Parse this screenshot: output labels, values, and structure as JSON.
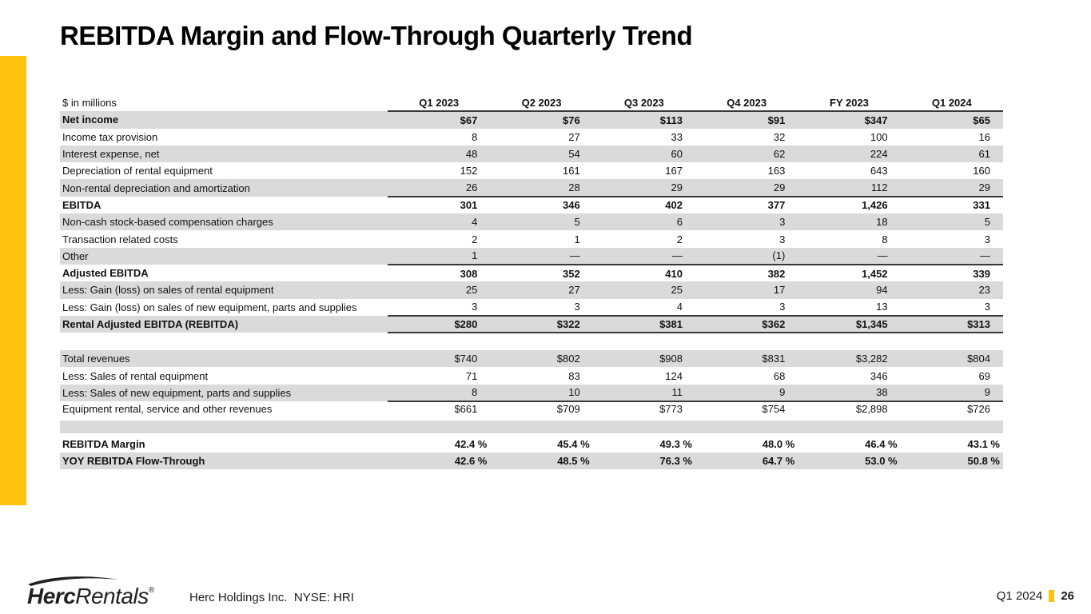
{
  "slide": {
    "title": "REBITDA Margin and Flow-Through Quarterly Trend",
    "accent_color": "#FFC20E"
  },
  "table": {
    "unit_label": "$ in millions",
    "columns": [
      "Q1 2023",
      "Q2 2023",
      "Q3 2023",
      "Q4 2023",
      "FY 2023",
      "Q1 2024"
    ],
    "rows": [
      {
        "label": "Net income",
        "values": [
          "$67",
          "$76",
          "$113",
          "$91",
          "$347",
          "$65"
        ],
        "bold": true,
        "shaded": true
      },
      {
        "label": "Income tax provision",
        "values": [
          "8",
          "27",
          "33",
          "32",
          "100",
          "16"
        ]
      },
      {
        "label": "Interest expense, net",
        "values": [
          "48",
          "54",
          "60",
          "62",
          "224",
          "61"
        ],
        "shaded": true
      },
      {
        "label": "Depreciation of rental equipment",
        "values": [
          "152",
          "161",
          "167",
          "163",
          "643",
          "160"
        ]
      },
      {
        "label": "Non-rental depreciation and amortization",
        "values": [
          "26",
          "28",
          "29",
          "29",
          "112",
          "29"
        ],
        "shaded": true,
        "rule_below": true
      },
      {
        "label": "EBITDA",
        "values": [
          "301",
          "346",
          "402",
          "377",
          "1,426",
          "331"
        ],
        "bold": true
      },
      {
        "label": "Non-cash stock-based compensation charges",
        "values": [
          "4",
          "5",
          "6",
          "3",
          "18",
          "5"
        ],
        "shaded": true
      },
      {
        "label": "Transaction related costs",
        "values": [
          "2",
          "1",
          "2",
          "3",
          "8",
          "3"
        ]
      },
      {
        "label": "Other",
        "values": [
          "1",
          "—",
          "—",
          "(1)",
          "—",
          "—"
        ],
        "shaded": true,
        "rule_below": true
      },
      {
        "label": "Adjusted EBITDA",
        "values": [
          "308",
          "352",
          "410",
          "382",
          "1,452",
          "339"
        ],
        "bold": true
      },
      {
        "label": "Less: Gain (loss) on sales of rental equipment",
        "values": [
          "25",
          "27",
          "25",
          "17",
          "94",
          "23"
        ],
        "shaded": true
      },
      {
        "label": "Less: Gain (loss) on sales of new equipment, parts and supplies",
        "values": [
          "3",
          "3",
          "4",
          "3",
          "13",
          "3"
        ],
        "rule_below": true
      },
      {
        "label": "Rental Adjusted EBITDA (REBITDA)",
        "values": [
          "$280",
          "$322",
          "$381",
          "$362",
          "$1,345",
          "$313"
        ],
        "bold": true,
        "shaded": true,
        "rule_below": true
      },
      {
        "spacer": "white"
      },
      {
        "label": "Total revenues",
        "values": [
          "$740",
          "$802",
          "$908",
          "$831",
          "$3,282",
          "$804"
        ],
        "shaded": true
      },
      {
        "label": "Less: Sales of rental equipment",
        "values": [
          "71",
          "83",
          "124",
          "68",
          "346",
          "69"
        ]
      },
      {
        "label": "Less: Sales of new equipment, parts and supplies",
        "values": [
          "8",
          "10",
          "11",
          "9",
          "38",
          "9"
        ],
        "shaded": true,
        "rule_below": true
      },
      {
        "label": "Equipment rental, service and other revenues",
        "values": [
          "$661",
          "$709",
          "$773",
          "$754",
          "$2,898",
          "$726"
        ],
        "rule_below": true
      },
      {
        "spacer": "gray"
      },
      {
        "label": "REBITDA Margin",
        "values": [
          "42.4 %",
          "45.4 %",
          "49.3 %",
          "48.0 %",
          "46.4 %",
          "43.1 %"
        ],
        "bold": true,
        "percent": true
      },
      {
        "label": "YOY REBITDA Flow-Through",
        "values": [
          "42.6 %",
          "48.5 %",
          "76.3 %",
          "64.7 %",
          "53.0 %",
          "50.8 %"
        ],
        "bold": true,
        "shaded": true,
        "percent": true
      }
    ]
  },
  "footer": {
    "logo": {
      "brand_bold": "Herc",
      "brand_light": "Rentals",
      "registered": "®"
    },
    "company_line": "Herc Holdings Inc.  NYSE: HRI",
    "period": "Q1 2024",
    "page_number": "26"
  }
}
